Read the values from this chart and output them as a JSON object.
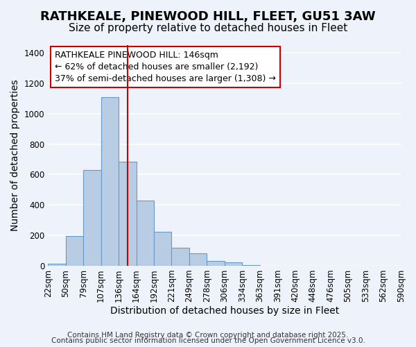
{
  "title": "RATHKEALE, PINEWOOD HILL, FLEET, GU51 3AW",
  "subtitle": "Size of property relative to detached houses in Fleet",
  "xlabel": "Distribution of detached houses by size in Fleet",
  "ylabel": "Number of detached properties",
  "bar_values": [
    15,
    195,
    630,
    1110,
    685,
    430,
    225,
    120,
    80,
    30,
    22,
    5,
    2,
    1,
    0,
    0,
    0,
    0,
    0,
    0
  ],
  "bin_labels": [
    "22sqm",
    "50sqm",
    "79sqm",
    "107sqm",
    "136sqm",
    "164sqm",
    "192sqm",
    "221sqm",
    "249sqm",
    "278sqm",
    "306sqm",
    "334sqm",
    "363sqm",
    "391sqm",
    "420sqm",
    "448sqm",
    "476sqm",
    "505sqm",
    "533sqm",
    "562sqm",
    "590sqm"
  ],
  "bar_color": "#b8cce4",
  "bar_edge_color": "#6699cc",
  "vline_position": 4.5,
  "vline_color": "#cc0000",
  "annotation_box_text": "RATHKEALE PINEWOOD HILL: 146sqm\n← 62% of detached houses are smaller (2,192)\n37% of semi-detached houses are larger (1,308) →",
  "annotation_box_color": "#cc0000",
  "ylim": [
    0,
    1450
  ],
  "yticks": [
    0,
    200,
    400,
    600,
    800,
    1000,
    1200,
    1400
  ],
  "footer_line1": "Contains HM Land Registry data © Crown copyright and database right 2025.",
  "footer_line2": "Contains public sector information licensed under the Open Government Licence v3.0.",
  "background_color": "#eef2fa",
  "grid_color": "#ffffff",
  "title_fontsize": 13,
  "subtitle_fontsize": 11,
  "axis_label_fontsize": 10,
  "tick_fontsize": 8.5,
  "annotation_fontsize": 9,
  "footer_fontsize": 7.5
}
